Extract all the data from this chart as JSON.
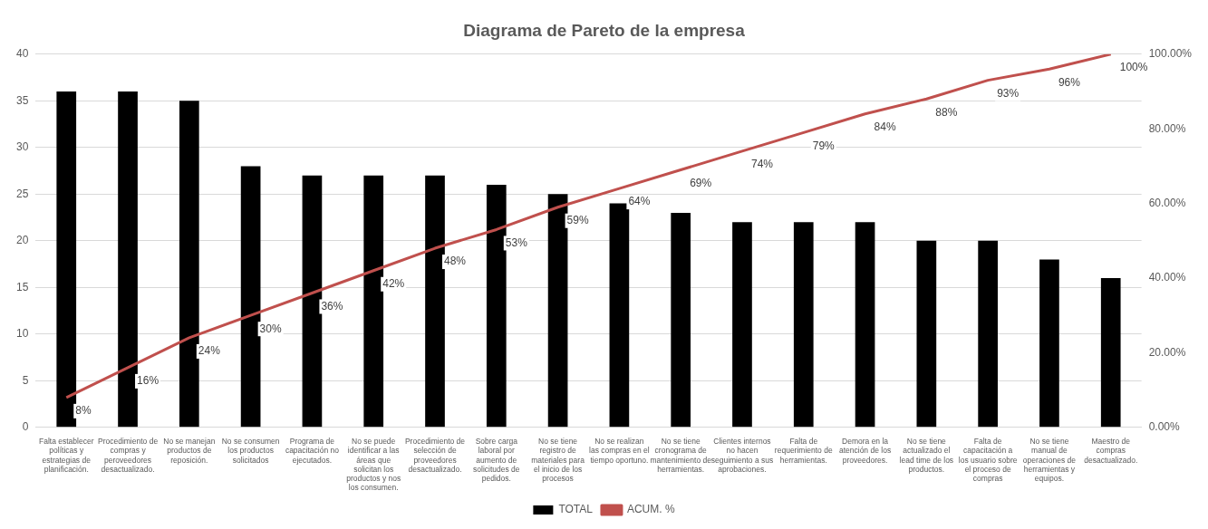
{
  "chart_data": {
    "type": "bar",
    "title": "Diagrama de Pareto de la empresa",
    "categories": [
      "Falta establecer políticas y estrategias de planificación.",
      "Procedimiento de compras y peroveedores desactualizado.",
      "No se manejan productos de reposición.",
      "No se consumen los productos solicitados",
      "Programa de capacitación no ejecutados.",
      "No se puede identificar a las áreas que solicitan los productos y nos los consumen.",
      "Procedimiento de selección de proveedores desactualizado.",
      "Sobre carga laboral por aumento de solicitudes de pedidos.",
      "No se tiene registro de materiales para el inicio de los procesos",
      "No se realizan las compras en el tiempo oportuno.",
      "No se tiene cronograma de mantenimiento de herramientas.",
      "Clientes internos no hacen seguimiento a sus aprobaciones.",
      "Falta de requerimiento de herramientas.",
      "Demora en la atención de los proveedores.",
      "No se tiene actualizado el lead time de los productos.",
      "Falta de capacitación a los usuario sobre el proceso de compras",
      "No se tiene manual de operaciones de herramientas y equipos.",
      "Maestro de compras desactualizado."
    ],
    "series": [
      {
        "name": "TOTAL",
        "color": "#000000",
        "values": [
          36,
          36,
          35,
          28,
          27,
          27,
          27,
          26,
          25,
          24,
          23,
          22,
          22,
          22,
          20,
          20,
          18,
          16
        ]
      },
      {
        "name": "ACUM. %",
        "type": "line",
        "axis": "y2",
        "color": "#c0504d",
        "values": [
          8,
          16,
          24,
          30,
          36,
          42,
          48,
          53,
          59,
          64,
          69,
          74,
          79,
          84,
          88,
          93,
          96,
          100
        ],
        "value_labels": [
          "8%",
          "16%",
          "24%",
          "30%",
          "36%",
          "42%",
          "48%",
          "53%",
          "59%",
          "64%",
          "69%",
          "74%",
          "79%",
          "84%",
          "88%",
          "93%",
          "96%",
          "100%"
        ]
      }
    ],
    "ylim": [
      0,
      40
    ],
    "yticks": [
      0,
      5,
      10,
      15,
      20,
      25,
      30,
      35,
      40
    ],
    "y2lim": [
      0,
      100
    ],
    "y2ticks": [
      {
        "value": 0,
        "label": "0.00%"
      },
      {
        "value": 20,
        "label": "20.00%"
      },
      {
        "value": 40,
        "label": "40.00%"
      },
      {
        "value": 60,
        "label": "60.00%"
      },
      {
        "value": 80,
        "label": "80.00%"
      },
      {
        "value": 100,
        "label": "100.00%"
      }
    ],
    "grid": "y",
    "legend": "bottom",
    "marker": "none"
  }
}
